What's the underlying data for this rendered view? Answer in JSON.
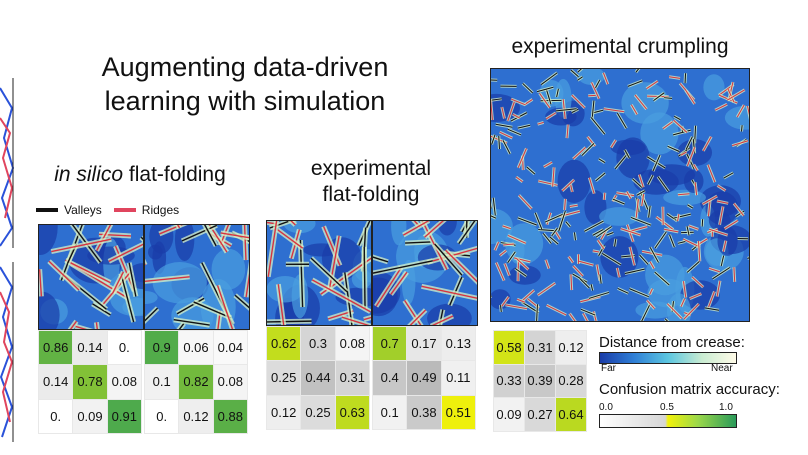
{
  "title": "Augmenting data-driven learning with simulation",
  "sections": {
    "insilico": {
      "italic": "in silico",
      "rest": " flat-folding"
    },
    "exp_flat": {
      "line1": "experimental",
      "line2": "flat-folding"
    },
    "exp_crump": "experimental crumpling"
  },
  "legend_lines": {
    "valleys": "Valleys",
    "ridges": "Ridges",
    "valley_color": "#111111",
    "ridge_color": "#e0455e"
  },
  "distance_legend": {
    "title": "Distance from crease:",
    "far": "Far",
    "near": "Near"
  },
  "confusion_legend": {
    "title": "Confusion matrix accuracy:",
    "ticks": [
      "0.0",
      "0.5",
      "1.0"
    ]
  },
  "matrices": [
    {
      "cells": [
        [
          "0.86",
          "0.14",
          "0."
        ],
        [
          "0.14",
          "0.78",
          "0.08"
        ],
        [
          "0.",
          "0.09",
          "0.91"
        ]
      ],
      "values": [
        [
          0.86,
          0.14,
          0
        ],
        [
          0.14,
          0.78,
          0.08
        ],
        [
          0,
          0.09,
          0.91
        ]
      ]
    },
    {
      "cells": [
        [
          "0.9",
          "0.06",
          "0.04"
        ],
        [
          "0.1",
          "0.82",
          "0.08"
        ],
        [
          "0.",
          "0.12",
          "0.88"
        ]
      ],
      "values": [
        [
          0.9,
          0.06,
          0.04
        ],
        [
          0.1,
          0.82,
          0.08
        ],
        [
          0,
          0.12,
          0.88
        ]
      ]
    },
    {
      "cells": [
        [
          "0.62",
          "0.3",
          "0.08"
        ],
        [
          "0.25",
          "0.44",
          "0.31"
        ],
        [
          "0.12",
          "0.25",
          "0.63"
        ]
      ],
      "values": [
        [
          0.62,
          0.3,
          0.08
        ],
        [
          0.25,
          0.44,
          0.31
        ],
        [
          0.12,
          0.25,
          0.63
        ]
      ]
    },
    {
      "cells": [
        [
          "0.7",
          "0.17",
          "0.13"
        ],
        [
          "0.4",
          "0.49",
          "0.11"
        ],
        [
          "0.1",
          "0.38",
          "0.51"
        ]
      ],
      "values": [
        [
          0.7,
          0.17,
          0.13
        ],
        [
          0.4,
          0.49,
          0.11
        ],
        [
          0.1,
          0.38,
          0.51
        ]
      ]
    },
    {
      "cells": [
        [
          "0.58",
          "0.31",
          "0.12"
        ],
        [
          "0.33",
          "0.39",
          "0.28"
        ],
        [
          "0.09",
          "0.27",
          "0.64"
        ]
      ],
      "values": [
        [
          0.58,
          0.31,
          0.12
        ],
        [
          0.33,
          0.39,
          0.28
        ],
        [
          0.09,
          0.27,
          0.64
        ]
      ]
    }
  ]
}
